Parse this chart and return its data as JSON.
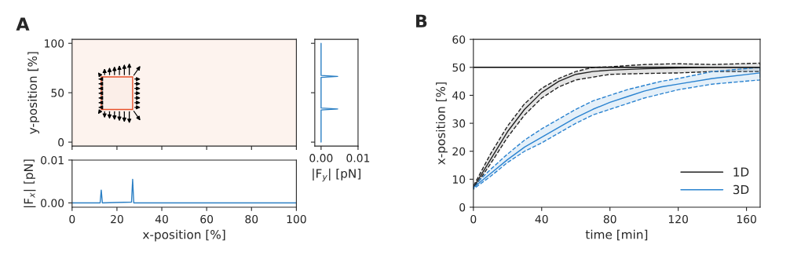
{
  "chart_data": [
    {
      "type": "line",
      "title": "A",
      "ylabel": "y-position [%]",
      "xlim": [
        0,
        100
      ],
      "ylim": [
        -4,
        104
      ],
      "xticks": [
        {
          "value": 0,
          "label": null
        },
        {
          "value": 20,
          "label": null
        },
        {
          "value": 40,
          "label": null
        },
        {
          "value": 60,
          "label": null
        },
        {
          "value": 80,
          "label": null
        },
        {
          "value": 100,
          "label": null
        }
      ],
      "yticks": [
        0,
        50,
        100
      ],
      "tick_labels": "y"
    },
    {
      "type": "line",
      "xlabel": "|F$_{y}$| [pN]",
      "xlim": [
        -0.0017,
        0.01
      ],
      "ylim": [
        -4,
        104
      ],
      "xticks": [
        {
          "value": 0,
          "label": "0.00"
        },
        {
          "value": 0.01,
          "label": "0.01"
        }
      ],
      "yticks": [
        {
          "value": 0,
          "label": null
        },
        {
          "value": 50,
          "label": null
        },
        {
          "value": 100,
          "label": null
        }
      ],
      "tick_labels": "x",
      "series": [
        {
          "color": "#2b7fc4",
          "x": [
            0,
            0,
            0.0045,
            0,
            0,
            0.0045,
            0,
            0
          ],
          "values": [
            0,
            32.5,
            33.5,
            34.5,
            65.5,
            66.5,
            67.5,
            100
          ]
        }
      ]
    },
    {
      "type": "line",
      "xlabel": "x-position [%]",
      "ylabel": "|F$_{x}$| [pN]",
      "xlim": [
        0,
        100
      ],
      "ylim": [
        -0.001,
        0.01
      ],
      "xticks": [
        0,
        20,
        40,
        60,
        80,
        100
      ],
      "yticks": [
        {
          "value": 0,
          "label": "0.00"
        },
        {
          "value": 0.01,
          "label": "0.01"
        }
      ],
      "series": [
        {
          "color": "#2b7fc4",
          "x": [
            0,
            12.5,
            13,
            13.5,
            26.5,
            27,
            27.5,
            100
          ],
          "values": [
            0,
            0,
            0.003,
            0,
            0.0002,
            0.0055,
            0,
            0
          ]
        }
      ]
    },
    {
      "type": "line",
      "title": "B",
      "xlabel": "time [min]",
      "ylabel": "x-position [%]",
      "xlim": [
        0,
        168
      ],
      "ylim": [
        0,
        60
      ],
      "xticks": [
        0,
        40,
        80,
        120,
        160
      ],
      "yticks": [
        0,
        10,
        20,
        30,
        40,
        50,
        60
      ],
      "legend": "bottom right",
      "ref_lines": [
        {
          "axis": "y",
          "value": 50,
          "color": "#000000"
        }
      ],
      "series": [
        {
          "name": "1D",
          "color": "#222222",
          "x": [
            0,
            10,
            20,
            30,
            40,
            50,
            60,
            70,
            80,
            100,
            120,
            140,
            168
          ],
          "values": [
            7,
            17,
            27,
            35,
            41,
            45,
            47.5,
            48.5,
            49,
            49.5,
            49.8,
            50,
            50
          ],
          "upper": [
            7.5,
            19,
            29,
            37,
            42.5,
            46,
            48.5,
            50,
            50.2,
            51,
            51.3,
            51,
            51.5
          ],
          "lower": [
            6.5,
            15.5,
            25,
            33,
            39,
            43,
            45.5,
            46.5,
            47.5,
            47.8,
            48,
            48.5,
            48.5
          ]
        },
        {
          "name": "3D",
          "color": "#2b83d0",
          "x": [
            0,
            10,
            20,
            30,
            40,
            50,
            60,
            70,
            80,
            90,
            100,
            110,
            120,
            140,
            168
          ],
          "values": [
            7,
            12,
            17,
            21.5,
            25,
            28.5,
            32,
            35,
            37.5,
            39.5,
            41.5,
            43,
            44,
            46,
            48
          ],
          "upper": [
            7.5,
            13.5,
            19,
            24,
            28,
            31.5,
            35,
            38,
            40,
            42,
            43.5,
            45,
            46,
            48.5,
            50
          ],
          "lower": [
            6.5,
            11,
            16,
            20,
            23,
            26.5,
            30,
            33,
            35,
            37,
            39,
            40.5,
            42,
            44,
            45.5
          ]
        }
      ]
    }
  ]
}
